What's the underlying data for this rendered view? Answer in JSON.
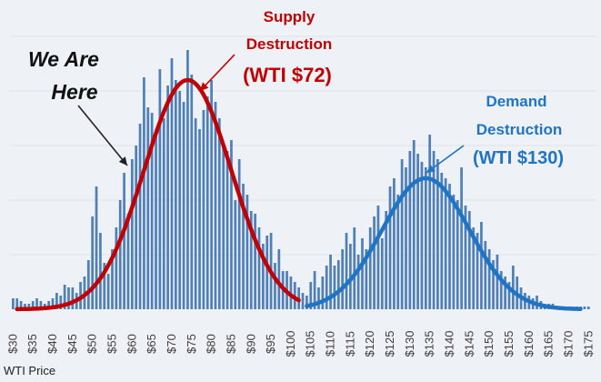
{
  "chart_data": {
    "type": "bar",
    "xlabel": "WTI Price",
    "x_tick_labels": [
      "$30",
      "$35",
      "$40",
      "$45",
      "$50",
      "$55",
      "$60",
      "$65",
      "$70",
      "$75",
      "$80",
      "$85",
      "$90",
      "$95",
      "$100",
      "$105",
      "$110",
      "$115",
      "$120",
      "$125",
      "$130",
      "$135",
      "$140",
      "$145",
      "$150",
      "$155",
      "$160",
      "$165",
      "$170",
      "$175"
    ],
    "xlim": [
      29,
      177
    ],
    "ylim": [
      0,
      100
    ],
    "histogram": {
      "bin_width": 1,
      "x": [
        30,
        31,
        32,
        33,
        34,
        35,
        36,
        37,
        38,
        39,
        40,
        41,
        42,
        43,
        44,
        45,
        46,
        47,
        48,
        49,
        50,
        51,
        52,
        53,
        54,
        55,
        56,
        57,
        58,
        59,
        60,
        61,
        62,
        63,
        64,
        65,
        66,
        67,
        68,
        69,
        70,
        71,
        72,
        73,
        74,
        75,
        76,
        77,
        78,
        79,
        80,
        81,
        82,
        83,
        84,
        85,
        86,
        87,
        88,
        89,
        90,
        91,
        92,
        93,
        94,
        95,
        96,
        97,
        98,
        99,
        100,
        101,
        102,
        103,
        104,
        105,
        106,
        107,
        108,
        109,
        110,
        111,
        112,
        113,
        114,
        115,
        116,
        117,
        118,
        119,
        120,
        121,
        122,
        123,
        124,
        125,
        126,
        127,
        128,
        129,
        130,
        131,
        132,
        133,
        134,
        135,
        136,
        137,
        138,
        139,
        140,
        141,
        142,
        143,
        144,
        145,
        146,
        147,
        148,
        149,
        150,
        151,
        152,
        153,
        154,
        155,
        156,
        157,
        158,
        159,
        160,
        161,
        162,
        163,
        164,
        165,
        166,
        167,
        168,
        169,
        170,
        171,
        172,
        173,
        174,
        175
      ],
      "y": [
        4,
        4,
        3,
        2,
        2,
        3,
        4,
        3,
        2,
        3,
        4,
        6,
        5,
        9,
        8,
        8,
        6,
        10,
        12,
        18,
        34,
        45,
        28,
        17,
        13,
        22,
        30,
        40,
        50,
        35,
        55,
        60,
        68,
        85,
        74,
        72,
        66,
        88,
        70,
        82,
        92,
        84,
        80,
        76,
        95,
        86,
        70,
        66,
        73,
        78,
        84,
        76,
        70,
        60,
        58,
        62,
        40,
        55,
        46,
        42,
        36,
        35,
        30,
        24,
        27,
        28,
        17,
        22,
        14,
        14,
        12,
        10,
        8,
        6,
        5,
        10,
        14,
        8,
        12,
        16,
        20,
        16,
        18,
        22,
        28,
        24,
        30,
        20,
        26,
        22,
        30,
        34,
        38,
        26,
        36,
        45,
        48,
        42,
        55,
        52,
        58,
        62,
        57,
        54,
        52,
        64,
        58,
        55,
        50,
        48,
        46,
        42,
        40,
        52,
        38,
        36,
        30,
        28,
        32,
        25,
        22,
        18,
        20,
        14,
        12,
        10,
        16,
        12,
        8,
        6,
        5,
        4,
        5,
        3,
        2,
        2,
        2,
        1,
        1,
        1,
        1,
        1,
        1,
        1,
        1,
        1
      ]
    },
    "series": [
      {
        "name": "Supply Destruction",
        "mean": 74,
        "sd": 11,
        "peak": 84,
        "x_range": [
          31,
          102
        ],
        "color": "#c00000"
      },
      {
        "name": "Demand Destruction",
        "mean": 134,
        "sd": 11,
        "peak": 48,
        "x_range": [
          104,
          173
        ],
        "color": "#1f74c4"
      }
    ],
    "annotations": {
      "supply_line1": "Supply",
      "supply_line2": "Destruction",
      "supply_price": "(WTI $72)",
      "demand_line1": "Demand",
      "demand_line2": "Destruction",
      "demand_price": "(WTI $130)",
      "here_line1": "We Are",
      "here_line2": "Here"
    },
    "colors": {
      "bars": "#4f7fb8",
      "supply": "#c00000",
      "demand": "#1f74c4",
      "pointer": "#222222",
      "background": "#eef1f6"
    }
  }
}
